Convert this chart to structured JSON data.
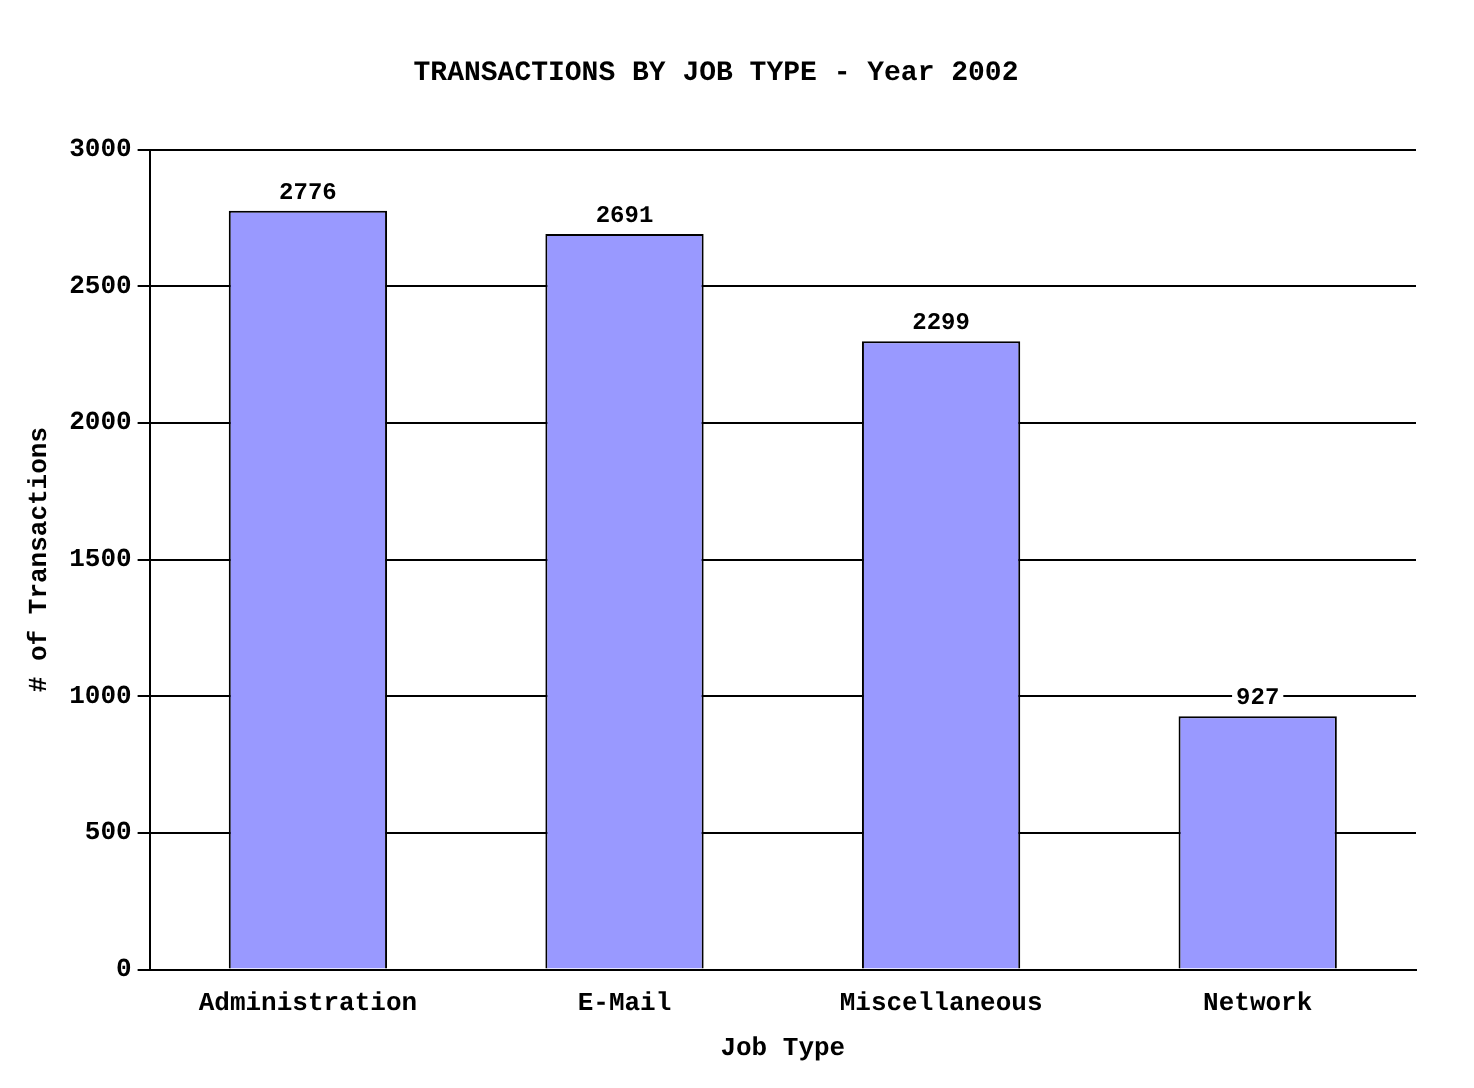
{
  "chart_data": {
    "type": "bar",
    "title": "TRANSACTIONS BY JOB TYPE - Year 2002",
    "xlabel": "Job Type",
    "ylabel": "# of Transactions",
    "categories": [
      "Administration",
      "E-Mail",
      "Miscellaneous",
      "Network"
    ],
    "values": [
      2776,
      2691,
      2299,
      927
    ],
    "color": "#9999ff",
    "ylim": [
      0,
      3000
    ],
    "yticks": [
      0,
      500,
      1000,
      1500,
      2000,
      2500,
      3000
    ],
    "grid": "y",
    "data_labels": true,
    "legend": false
  }
}
